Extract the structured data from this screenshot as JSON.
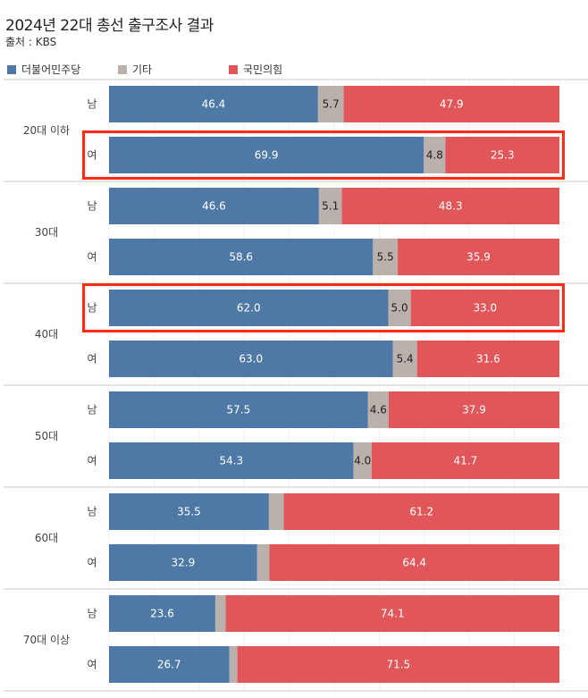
{
  "title": "2024년 22대 총선 출구조사 결과",
  "source": "출처 : KBS",
  "chart_data": {
    "type": "bar",
    "orientation": "horizontal",
    "stacked": true,
    "xlim": [
      0,
      100
    ],
    "grid": true,
    "legend_position": "top-left",
    "legend": [
      {
        "name": "더불어민주당",
        "color": "#4e79a7"
      },
      {
        "name": "기타",
        "color": "#bab0ac"
      },
      {
        "name": "국민의힘",
        "color": "#e15759"
      }
    ],
    "groups": [
      {
        "label": "20대 이하",
        "rows": [
          {
            "gender": "남",
            "values": [
              46.4,
              5.7,
              47.9
            ],
            "labels": [
              "46.4",
              "5.7",
              "47.9"
            ],
            "highlighted": false
          },
          {
            "gender": "여",
            "values": [
              69.9,
              4.8,
              25.3
            ],
            "labels": [
              "69.9",
              "4.8",
              "25.3"
            ],
            "highlighted": true
          }
        ]
      },
      {
        "label": "30대",
        "rows": [
          {
            "gender": "남",
            "values": [
              46.6,
              5.1,
              48.3
            ],
            "labels": [
              "46.6",
              "5.1",
              "48.3"
            ],
            "highlighted": false
          },
          {
            "gender": "여",
            "values": [
              58.6,
              5.5,
              35.9
            ],
            "labels": [
              "58.6",
              "5.5",
              "35.9"
            ],
            "highlighted": false
          }
        ]
      },
      {
        "label": "40대",
        "rows": [
          {
            "gender": "남",
            "values": [
              62.0,
              5.0,
              33.0
            ],
            "labels": [
              "62.0",
              "5.0",
              "33.0"
            ],
            "highlighted": true
          },
          {
            "gender": "여",
            "values": [
              63.0,
              5.4,
              31.6
            ],
            "labels": [
              "63.0",
              "5.4",
              "31.6"
            ],
            "highlighted": false
          }
        ]
      },
      {
        "label": "50대",
        "rows": [
          {
            "gender": "남",
            "values": [
              57.5,
              4.6,
              37.9
            ],
            "labels": [
              "57.5",
              "4.6",
              "37.9"
            ],
            "highlighted": false
          },
          {
            "gender": "여",
            "values": [
              54.3,
              4.0,
              41.7
            ],
            "labels": [
              "54.3",
              "4.0",
              "41.7"
            ],
            "highlighted": false
          }
        ]
      },
      {
        "label": "60대",
        "rows": [
          {
            "gender": "남",
            "values": [
              35.5,
              3.3,
              61.2
            ],
            "labels": [
              "35.5",
              "",
              "61.2"
            ],
            "highlighted": false
          },
          {
            "gender": "여",
            "values": [
              32.9,
              2.7,
              64.4
            ],
            "labels": [
              "32.9",
              "",
              "64.4"
            ],
            "highlighted": false
          }
        ]
      },
      {
        "label": "70대 이상",
        "rows": [
          {
            "gender": "남",
            "values": [
              23.6,
              2.3,
              74.1
            ],
            "labels": [
              "23.6",
              "",
              "74.1"
            ],
            "highlighted": false
          },
          {
            "gender": "여",
            "values": [
              26.7,
              1.8,
              71.5
            ],
            "labels": [
              "26.7",
              "",
              "71.5"
            ],
            "highlighted": false
          }
        ]
      }
    ],
    "highlight_color": "#ff2a12"
  }
}
